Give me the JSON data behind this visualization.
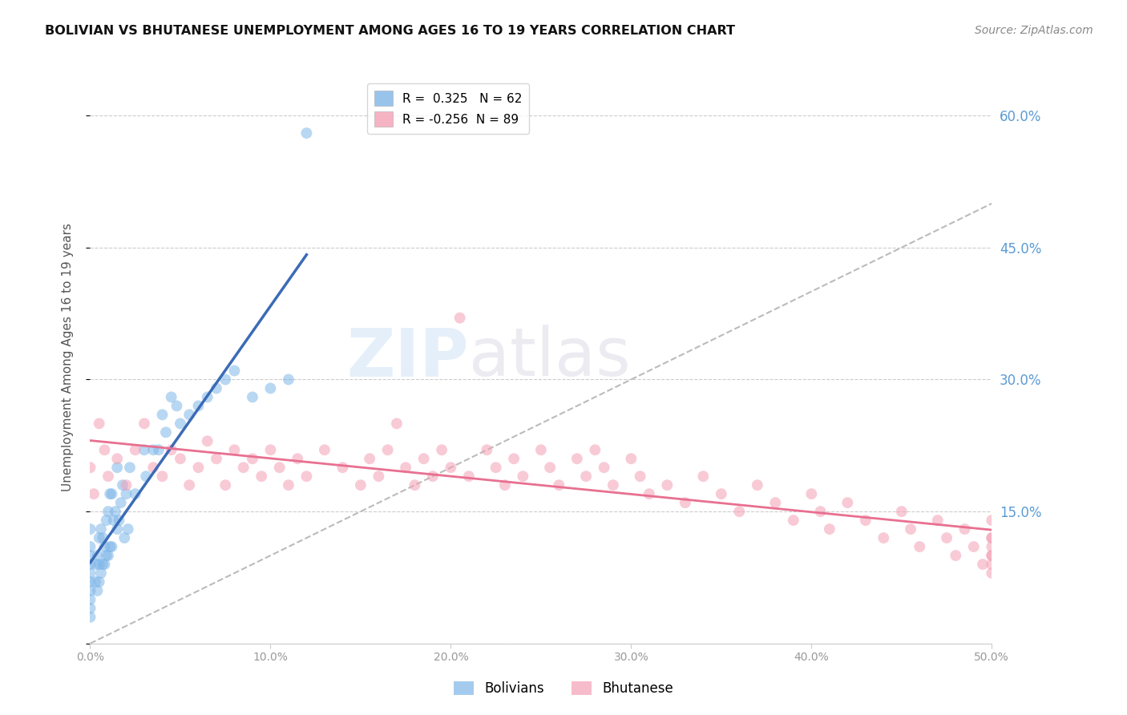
{
  "title": "BOLIVIAN VS BHUTANESE UNEMPLOYMENT AMONG AGES 16 TO 19 YEARS CORRELATION CHART",
  "source": "Source: ZipAtlas.com",
  "ylabel": "Unemployment Among Ages 16 to 19 years",
  "xlim": [
    0.0,
    50.0
  ],
  "ylim": [
    0.0,
    65.0
  ],
  "x_ticks": [
    0.0,
    10.0,
    20.0,
    30.0,
    40.0,
    50.0
  ],
  "x_tick_labels": [
    "0.0%",
    "10.0%",
    "20.0%",
    "30.0%",
    "40.0%",
    "50.0%"
  ],
  "y_ticks": [
    0.0,
    15.0,
    30.0,
    45.0,
    60.0
  ],
  "y_tick_labels": [
    "",
    "15.0%",
    "30.0%",
    "45.0%",
    "60.0%"
  ],
  "bolivian_color": "#7EB6E8",
  "bhutanese_color": "#F4A0B5",
  "bolivian_R": 0.325,
  "bolivian_N": 62,
  "bhutanese_R": -0.256,
  "bhutanese_N": 89,
  "bolivian_line_color": "#3B6BB5",
  "bhutanese_line_color": "#E87090",
  "diagonal_color": "#BBBBBB",
  "right_axis_color": "#5B9BD5",
  "bolivian_x": [
    0.0,
    0.0,
    0.0,
    0.0,
    0.0,
    0.0,
    0.0,
    0.0,
    0.0,
    0.0,
    0.3,
    0.3,
    0.4,
    0.4,
    0.5,
    0.5,
    0.5,
    0.6,
    0.6,
    0.7,
    0.7,
    0.8,
    0.8,
    0.9,
    0.9,
    1.0,
    1.0,
    1.1,
    1.1,
    1.2,
    1.2,
    1.3,
    1.4,
    1.5,
    1.5,
    1.6,
    1.7,
    1.8,
    1.9,
    2.0,
    2.1,
    2.2,
    2.5,
    3.0,
    3.1,
    3.5,
    3.8,
    4.0,
    4.2,
    4.5,
    4.8,
    5.0,
    5.5,
    6.0,
    6.5,
    7.0,
    7.5,
    8.0,
    9.0,
    10.0,
    11.0,
    12.0
  ],
  "bolivian_y": [
    4.0,
    6.0,
    7.0,
    8.0,
    9.0,
    10.0,
    11.0,
    13.0,
    3.0,
    5.0,
    7.0,
    9.0,
    6.0,
    10.0,
    7.0,
    9.0,
    12.0,
    8.0,
    13.0,
    9.0,
    12.0,
    9.0,
    11.0,
    10.0,
    14.0,
    10.0,
    15.0,
    11.0,
    17.0,
    11.0,
    17.0,
    14.0,
    15.0,
    13.0,
    20.0,
    14.0,
    16.0,
    18.0,
    12.0,
    17.0,
    13.0,
    20.0,
    17.0,
    22.0,
    19.0,
    22.0,
    22.0,
    26.0,
    24.0,
    28.0,
    27.0,
    25.0,
    26.0,
    27.0,
    28.0,
    29.0,
    30.0,
    31.0,
    28.0,
    29.0,
    30.0,
    58.0
  ],
  "bhutanese_x": [
    0.0,
    0.2,
    0.5,
    0.8,
    1.0,
    1.5,
    2.0,
    2.5,
    3.0,
    3.5,
    4.0,
    4.5,
    5.0,
    5.5,
    6.0,
    6.5,
    7.0,
    7.5,
    8.0,
    8.5,
    9.0,
    9.5,
    10.0,
    10.5,
    11.0,
    11.5,
    12.0,
    13.0,
    14.0,
    15.0,
    15.5,
    16.0,
    16.5,
    17.0,
    17.5,
    18.0,
    18.5,
    19.0,
    19.5,
    20.0,
    20.5,
    21.0,
    22.0,
    22.5,
    23.0,
    23.5,
    24.0,
    25.0,
    25.5,
    26.0,
    27.0,
    27.5,
    28.0,
    28.5,
    29.0,
    30.0,
    30.5,
    31.0,
    32.0,
    33.0,
    34.0,
    35.0,
    36.0,
    37.0,
    38.0,
    39.0,
    40.0,
    40.5,
    41.0,
    42.0,
    43.0,
    44.0,
    45.0,
    45.5,
    46.0,
    47.0,
    47.5,
    48.0,
    48.5,
    49.0,
    49.5,
    50.0,
    50.0,
    50.0,
    50.0,
    50.0,
    50.0,
    50.0,
    50.0
  ],
  "bhutanese_y": [
    20.0,
    17.0,
    25.0,
    22.0,
    19.0,
    21.0,
    18.0,
    22.0,
    25.0,
    20.0,
    19.0,
    22.0,
    21.0,
    18.0,
    20.0,
    23.0,
    21.0,
    18.0,
    22.0,
    20.0,
    21.0,
    19.0,
    22.0,
    20.0,
    18.0,
    21.0,
    19.0,
    22.0,
    20.0,
    18.0,
    21.0,
    19.0,
    22.0,
    25.0,
    20.0,
    18.0,
    21.0,
    19.0,
    22.0,
    20.0,
    37.0,
    19.0,
    22.0,
    20.0,
    18.0,
    21.0,
    19.0,
    22.0,
    20.0,
    18.0,
    21.0,
    19.0,
    22.0,
    20.0,
    18.0,
    21.0,
    19.0,
    17.0,
    18.0,
    16.0,
    19.0,
    17.0,
    15.0,
    18.0,
    16.0,
    14.0,
    17.0,
    15.0,
    13.0,
    16.0,
    14.0,
    12.0,
    15.0,
    13.0,
    11.0,
    14.0,
    12.0,
    10.0,
    13.0,
    11.0,
    9.0,
    12.0,
    14.0,
    10.0,
    9.0,
    11.0,
    8.0,
    10.0,
    12.0
  ]
}
